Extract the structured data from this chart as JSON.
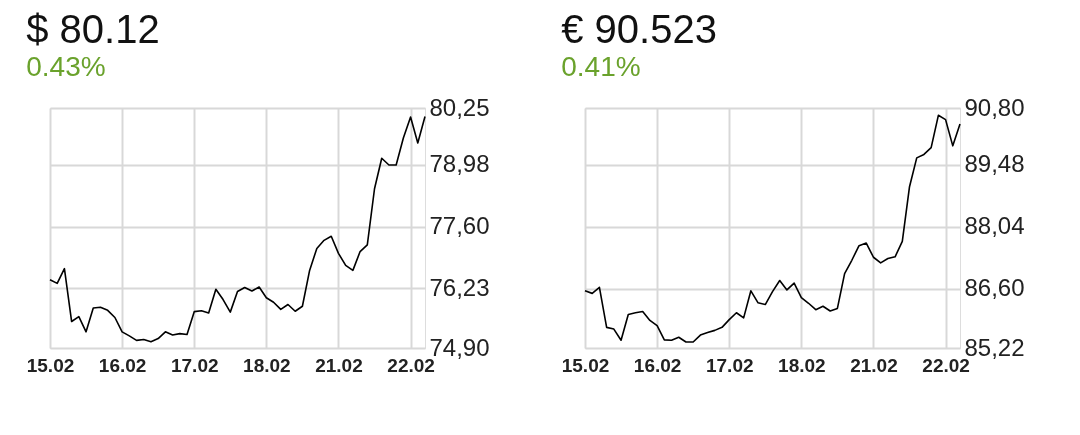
{
  "chart_data": [
    {
      "type": "line",
      "title": "$ 80.12",
      "subtitle": "0.43%",
      "categories": [
        "15.02",
        null,
        null,
        null,
        null,
        null,
        null,
        null,
        null,
        null,
        "16.02",
        null,
        null,
        null,
        null,
        null,
        null,
        null,
        null,
        null,
        "17.02",
        null,
        null,
        null,
        null,
        null,
        null,
        null,
        null,
        null,
        "18.02",
        null,
        null,
        null,
        null,
        null,
        null,
        null,
        null,
        null,
        "21.02",
        null,
        null,
        null,
        null,
        null,
        null,
        null,
        null,
        null,
        "22.02",
        null,
        null
      ],
      "series": [
        {
          "color": "#000000",
          "values": [
            76.42,
            76.34,
            76.67,
            75.49,
            75.6,
            75.26,
            75.79,
            75.81,
            75.74,
            75.58,
            75.26,
            75.17,
            75.07,
            75.09,
            75.04,
            75.11,
            75.26,
            75.19,
            75.22,
            75.2,
            75.71,
            75.73,
            75.68,
            76.21,
            75.98,
            75.7,
            76.16,
            76.25,
            76.17,
            76.26,
            76.02,
            75.92,
            75.76,
            75.87,
            75.72,
            75.83,
            76.63,
            77.12,
            77.3,
            77.39,
            77.01,
            76.74,
            76.63,
            77.05,
            77.2,
            78.45,
            79.13,
            78.98,
            78.98,
            79.58,
            80.05,
            79.47,
            80.06
          ]
        }
      ],
      "ylim": [
        74.9,
        80.25
      ],
      "yticks": [
        {
          "value": 74.9,
          "label": "74,90"
        },
        {
          "value": 76.23,
          "label": "76,23"
        },
        {
          "value": 77.6,
          "label": "77,60"
        },
        {
          "value": 78.98,
          "label": "78,98"
        },
        {
          "value": 80.25,
          "label": "80,25"
        }
      ],
      "grid": true
    },
    {
      "type": "line",
      "title": "€ 90.523",
      "subtitle": "0.41%",
      "categories": [
        "15.02",
        null,
        null,
        null,
        null,
        null,
        null,
        null,
        null,
        null,
        "16.02",
        null,
        null,
        null,
        null,
        null,
        null,
        null,
        null,
        null,
        "17.02",
        null,
        null,
        null,
        null,
        null,
        null,
        null,
        null,
        null,
        "18.02",
        null,
        null,
        null,
        null,
        null,
        null,
        null,
        null,
        null,
        "21.02",
        null,
        null,
        null,
        null,
        null,
        null,
        null,
        null,
        null,
        "22.02",
        null,
        null
      ],
      "series": [
        {
          "color": "#000000",
          "values": [
            86.55,
            86.49,
            86.63,
            85.7,
            85.66,
            85.4,
            86.0,
            86.04,
            86.07,
            85.86,
            85.74,
            85.41,
            85.4,
            85.47,
            85.36,
            85.36,
            85.52,
            85.58,
            85.63,
            85.7,
            85.88,
            86.04,
            85.92,
            86.55,
            86.27,
            86.23,
            86.53,
            86.79,
            86.57,
            86.73,
            86.39,
            86.26,
            86.11,
            86.19,
            86.08,
            86.14,
            86.95,
            87.26,
            87.6,
            87.66,
            87.33,
            87.2,
            87.3,
            87.34,
            87.7,
            88.97,
            89.64,
            89.72,
            89.88,
            90.63,
            90.53,
            89.92,
            90.43
          ]
        }
      ],
      "ylim": [
        85.22,
        90.8
      ],
      "yticks": [
        {
          "value": 85.22,
          "label": "85,22"
        },
        {
          "value": 86.6,
          "label": "86,60"
        },
        {
          "value": 88.04,
          "label": "88,04"
        },
        {
          "value": 89.48,
          "label": "89,48"
        },
        {
          "value": 90.8,
          "label": "90,80"
        }
      ],
      "grid": true
    }
  ]
}
